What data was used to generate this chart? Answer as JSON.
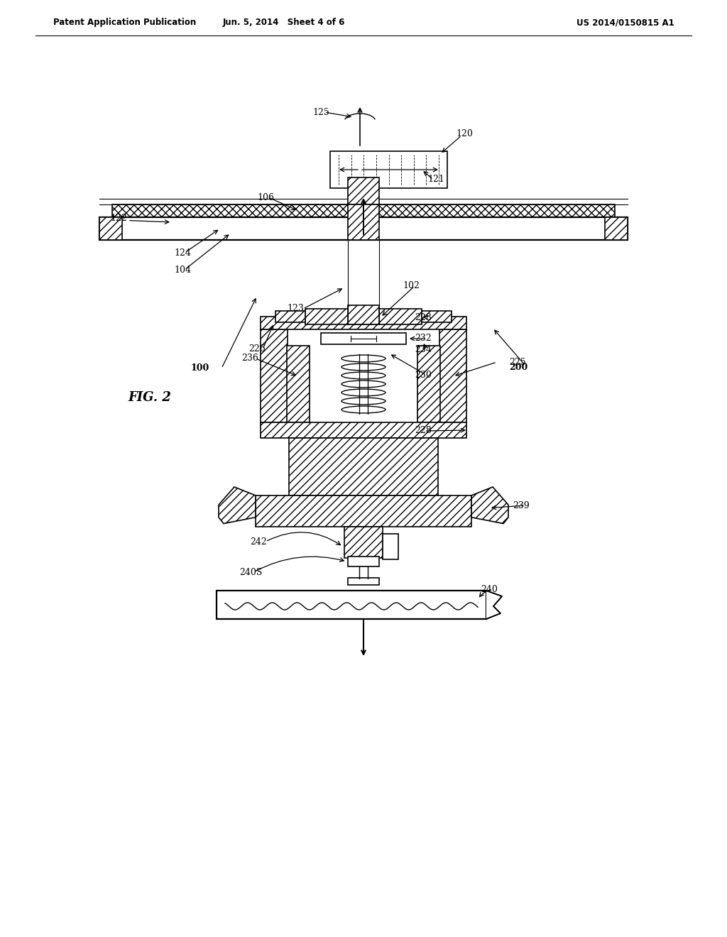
{
  "bg_color": "#ffffff",
  "header": {
    "left": "Patent Application Publication",
    "center": "Jun. 5, 2014   Sheet 4 of 6",
    "right": "US 2014/0150815 A1"
  },
  "fig_label": "FIG. 2"
}
